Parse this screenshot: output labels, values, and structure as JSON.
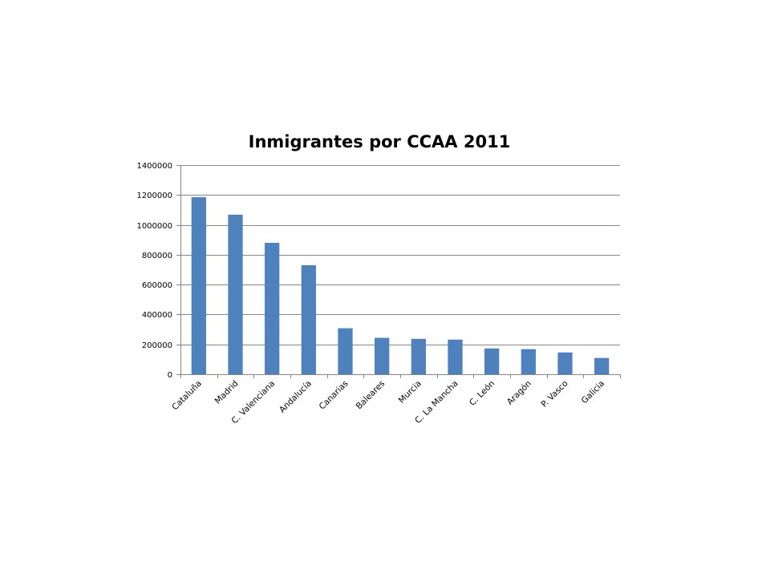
{
  "chart_data": {
    "type": "bar",
    "title": "Inmigrantes por CCAA 2011",
    "xlabel": "",
    "ylabel": "",
    "categories": [
      "Cataluña",
      "Madrid",
      "C. Valenciana",
      "Andalucía",
      "Canarias",
      "Baleares",
      "Murcia",
      "C. La Mancha",
      "C. León",
      "Aragón",
      "P. Vasco",
      "Galicia"
    ],
    "values": [
      1185000,
      1068000,
      880000,
      730000,
      308000,
      244000,
      237000,
      232000,
      173000,
      168000,
      146000,
      109000
    ],
    "ylim": [
      0,
      1400000
    ],
    "yticks": [
      0,
      200000,
      400000,
      600000,
      800000,
      1000000,
      1200000,
      1400000
    ],
    "grid": true,
    "legend": "none",
    "bar_color": "#4F81BD"
  }
}
